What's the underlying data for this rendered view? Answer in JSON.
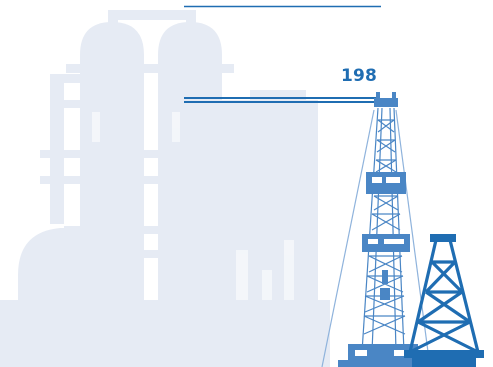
{
  "value_label": "198",
  "colors": {
    "background": "#ffffff",
    "refinery_silhouette": "#e6ebf4",
    "accent_blue": "#1f6db2",
    "rig_blue": "#4a86c5",
    "rig_light": "#8fb3dc"
  },
  "icons": {
    "background": "refinery-silhouette-icon",
    "tall_rig": "drilling-rig-icon",
    "small_rig": "oil-derrick-icon"
  }
}
